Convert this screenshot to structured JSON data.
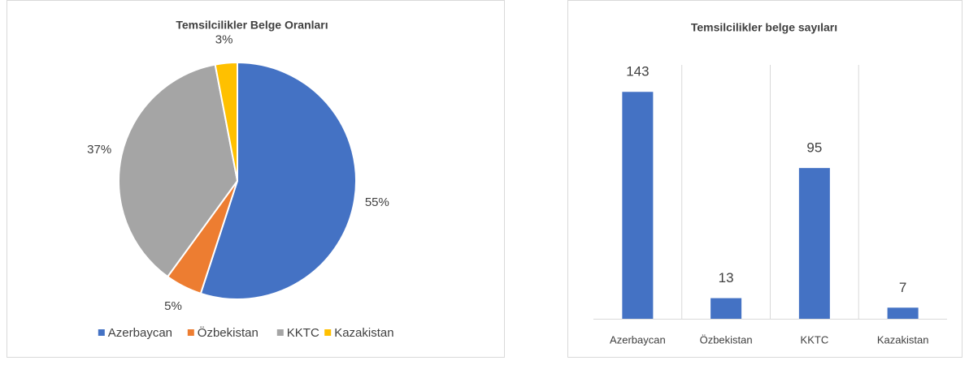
{
  "chart_data": [
    {
      "type": "pie",
      "title": "Temsilcilikler Belge Oranları",
      "categories": [
        "Azerbaycan",
        "Özbekistan",
        "KKTC",
        "Kazakistan"
      ],
      "values": [
        55,
        5,
        37,
        3
      ],
      "value_labels": [
        "55%",
        "5%",
        "37%",
        "3%"
      ],
      "colors": [
        "#4472c4",
        "#ed7d31",
        "#a5a5a5",
        "#ffc000"
      ],
      "legend": "bottom"
    },
    {
      "type": "bar",
      "title": "Temsilcilikler belge sayıları",
      "categories": [
        "Azerbaycan",
        "Özbekistan",
        "KKTC",
        "Kazakistan"
      ],
      "values": [
        143,
        13,
        95,
        7
      ],
      "color": "#4472c4",
      "ylim": [
        0,
        160
      ]
    }
  ]
}
